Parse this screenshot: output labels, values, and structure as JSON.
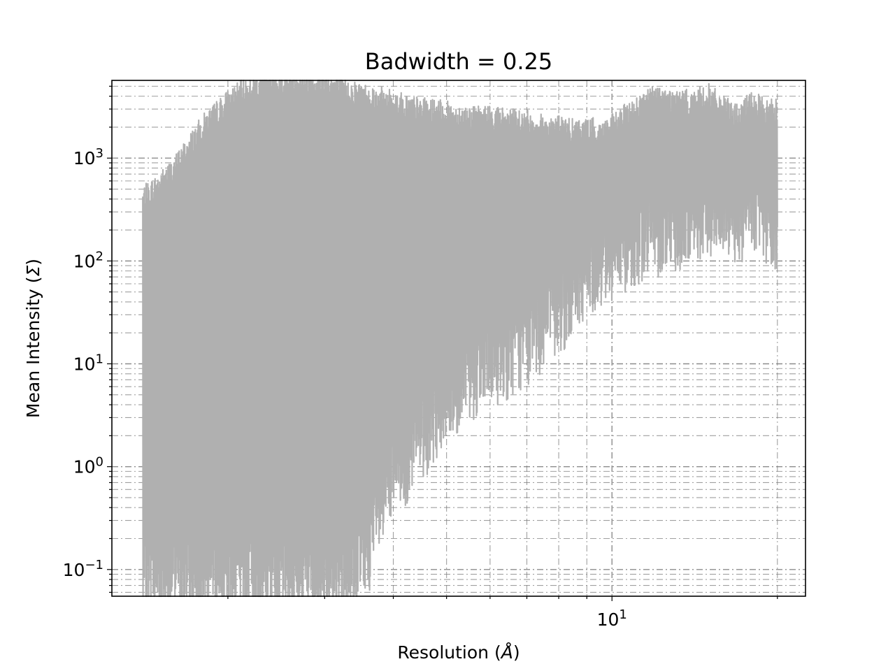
{
  "chart_data": {
    "type": "line",
    "title": "Badwidth = 0.25",
    "xlabel": "Resolution (",
    "xlabel_symbol": "Å",
    "xlabel_close": ")",
    "ylabel": "Mean Intensity (",
    "ylabel_symbol": "Σ",
    "ylabel_close": ")",
    "xscale": "log",
    "yscale": "log",
    "xlim": [
      1.23,
      22.5
    ],
    "ylim": [
      0.055,
      5700
    ],
    "grid": true,
    "grid_style": "dash-dot",
    "line_color": "#b0b0b0",
    "grid_color": "#808080",
    "x_ticks": [
      {
        "value": 10,
        "base": "10",
        "exp": "1"
      }
    ],
    "y_ticks": [
      {
        "value": 0.1,
        "base": "10",
        "exp": "−1"
      },
      {
        "value": 1,
        "base": "10",
        "exp": "0"
      },
      {
        "value": 10,
        "base": "10",
        "exp": "1"
      },
      {
        "value": 100,
        "base": "10",
        "exp": "2"
      },
      {
        "value": 1000,
        "base": "10",
        "exp": "3"
      }
    ],
    "series": [
      {
        "x": [
          1.4,
          1.5,
          1.6,
          1.7,
          1.8,
          2.0,
          2.2,
          2.5,
          2.8,
          3.0,
          3.3,
          3.6,
          4.0,
          4.4,
          4.8,
          5.2,
          5.6,
          6.0,
          6.5,
          7.0,
          7.5,
          8.0,
          8.5,
          9.0,
          9.5,
          10.0,
          11.0,
          12.0,
          13.0,
          14.0,
          15.0,
          16.0,
          17.0,
          18.0,
          19.0,
          20.0
        ],
        "y_upper": [
          400,
          550,
          800,
          1300,
          2000,
          3500,
          5000,
          5700,
          5700,
          5500,
          4500,
          4000,
          3500,
          3000,
          2800,
          2600,
          2400,
          2500,
          2300,
          2200,
          2000,
          2000,
          1800,
          1900,
          1800,
          2000,
          3000,
          4000,
          3500,
          3500,
          4000,
          3000,
          2500,
          3500,
          2800,
          3000
        ],
        "y_lower": [
          0.055,
          0.055,
          0.055,
          0.055,
          0.055,
          0.055,
          0.055,
          0.055,
          0.055,
          0.055,
          0.055,
          0.1,
          0.5,
          1.0,
          2.0,
          3.0,
          5.0,
          6.0,
          8.0,
          10,
          15,
          20,
          30,
          50,
          60,
          70,
          100,
          120,
          130,
          150,
          180,
          200,
          150,
          200,
          150,
          100
        ]
      }
    ]
  }
}
